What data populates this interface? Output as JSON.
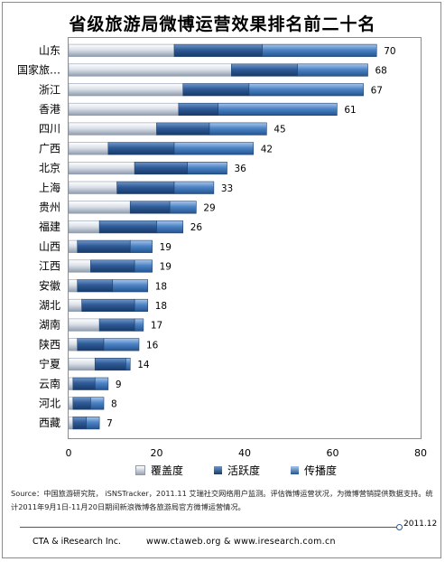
{
  "chart_data": {
    "type": "bar",
    "stacked": true,
    "orientation": "horizontal",
    "title": "省级旅游局微博运营效果排名前二十名",
    "categories": [
      "山东",
      "国家旅…",
      "浙江",
      "香港",
      "四川",
      "广西",
      "北京",
      "上海",
      "贵州",
      "福建",
      "山西",
      "江西",
      "安徽",
      "湖北",
      "湖南",
      "陕西",
      "宁夏",
      "云南",
      "河北",
      "西藏"
    ],
    "totals": [
      70,
      68,
      67,
      61,
      45,
      42,
      36,
      33,
      29,
      26,
      19,
      19,
      18,
      18,
      17,
      16,
      14,
      9,
      8,
      7
    ],
    "series": [
      {
        "name": "覆盖度",
        "color": "#c9d1dc",
        "values": [
          24,
          37,
          26,
          25,
          20,
          9,
          15,
          11,
          14,
          7,
          2,
          5,
          2,
          3,
          7,
          2,
          6,
          1,
          1,
          1
        ]
      },
      {
        "name": "活跃度",
        "color": "#2f5b97",
        "values": [
          20,
          15,
          15,
          9,
          12,
          15,
          12,
          13,
          9,
          13,
          12,
          10,
          8,
          12,
          8,
          6,
          7,
          5,
          4,
          3
        ]
      },
      {
        "name": "传播度",
        "color": "#4d84c6",
        "values": [
          26,
          16,
          26,
          27,
          13,
          18,
          9,
          9,
          6,
          6,
          5,
          4,
          8,
          3,
          2,
          8,
          1,
          3,
          3,
          3
        ]
      }
    ],
    "xlim": [
      0,
      80
    ],
    "xticks": [
      0,
      20,
      40,
      60,
      80
    ],
    "legend_position": "bottom",
    "grid": false
  },
  "source_note": "Source：中国旅游研究院，  iSNSTracker，2011.11  艾瑞社交网络用户监测。评估微博运营状况，为微博营销提供数据支持。统计2011年9月1日-11月20日期间新浪微博各旅游局官方微博运营情况。",
  "date_label": "2011.12",
  "footer_left": "CTA & iResearch Inc.",
  "footer_right": "www.ctaweb.org  &  www.iresearch.com.cn"
}
